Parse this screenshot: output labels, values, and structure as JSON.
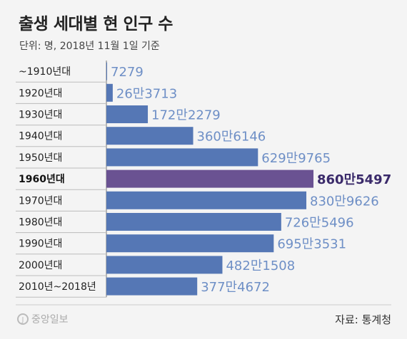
{
  "chart_data": {
    "type": "bar",
    "orientation": "horizontal",
    "title": "출생 세대별 현 인구 수",
    "subtitle": "단위: 명, 2018년 11월 1일 기준",
    "source": "자료: 통계청",
    "logo": "중앙일보",
    "categories": [
      "~1910년대",
      "1920년대",
      "1930년대",
      "1940년대",
      "1950년대",
      "1960년대",
      "1970년대",
      "1980년대",
      "1990년대",
      "2000년대",
      "2010년~2018년"
    ],
    "values": [
      7279,
      263713,
      1722279,
      3606146,
      6299765,
      8605497,
      8309626,
      7265496,
      6953531,
      4821508,
      3774672
    ],
    "value_labels": [
      "7279",
      "26만3713",
      "172만2279",
      "360만6146",
      "629만9765",
      "860만5497",
      "830만9626",
      "726만5496",
      "695만3531",
      "482만1508",
      "377만4672"
    ],
    "highlight_index": 5,
    "colors": {
      "bar": "#5577b5",
      "highlight": "#6a5292",
      "label": "#6e8fc6",
      "highlight_label": "#3a2a6a"
    }
  }
}
